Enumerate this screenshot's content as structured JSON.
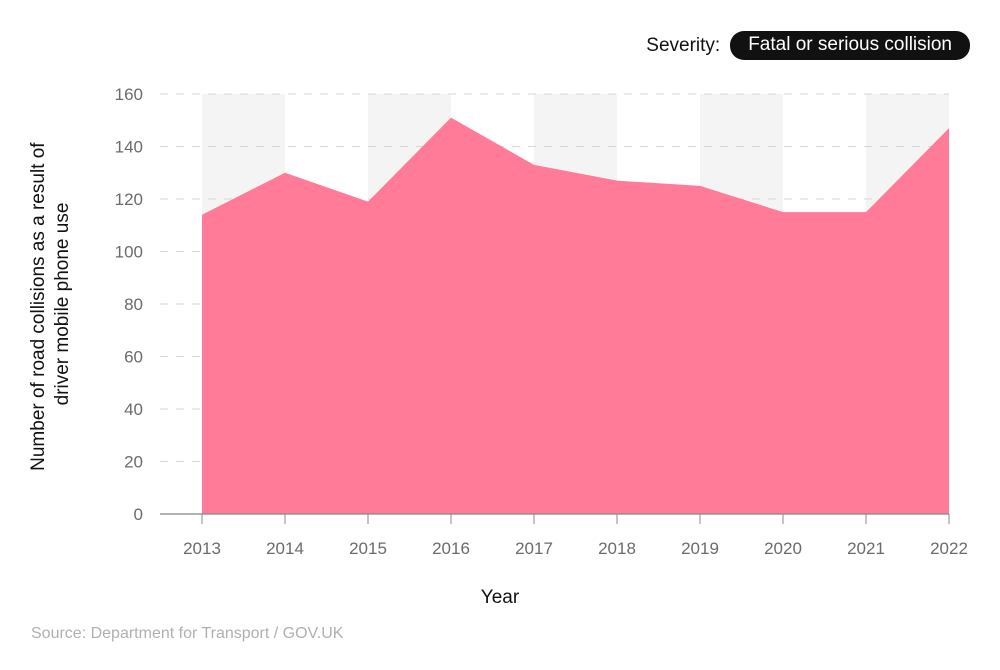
{
  "filter": {
    "label": "Severity:",
    "selected": "Fatal or serious collision"
  },
  "colors": {
    "area": "#ff7b98",
    "band": "#f4f4f5",
    "grid": "#d6d6d6",
    "axis": "#888888",
    "pill_bg": "#111111"
  },
  "source": "Source: Department for Transport / GOV.UK",
  "chart_data": {
    "type": "area",
    "title": "",
    "categories": [
      "2013",
      "2014",
      "2015",
      "2016",
      "2017",
      "2018",
      "2019",
      "2020",
      "2021",
      "2022"
    ],
    "series": [
      {
        "name": "Fatal or serious collision",
        "values": [
          114,
          130,
          119,
          151,
          133,
          127,
          125,
          115,
          115,
          147
        ]
      }
    ],
    "xlabel": "Year",
    "ylabel": "Number of road collisions as a result of driver mobile phone use",
    "ylim": [
      0,
      160
    ],
    "yticks": [
      0,
      20,
      40,
      60,
      80,
      100,
      120,
      140,
      160
    ],
    "grid": true,
    "legend": "none"
  }
}
